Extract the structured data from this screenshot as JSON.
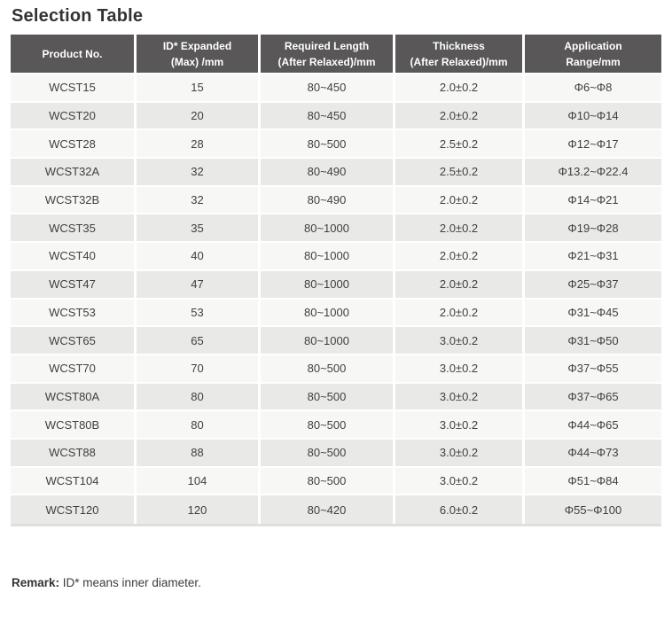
{
  "page": {
    "title": "Selection Table",
    "remark_label": "Remark:",
    "remark_text": " ID* means inner diameter."
  },
  "colors": {
    "header_bg": "#595757",
    "header_text": "#ffffff",
    "row_odd_bg": "#f7f7f6",
    "row_even_bg": "#e9e9e8",
    "cell_text": "#404040",
    "title_text": "#333333",
    "table_bottom_border": "#dfdfde"
  },
  "table": {
    "headers": [
      "Product No.",
      "ID* Expanded\n(Max) /mm",
      "Required Length\n(After Relaxed)/mm",
      "Thickness\n(After Relaxed)/mm",
      "Application\nRange/mm"
    ],
    "rows": [
      [
        "WCST15",
        "15",
        "80~450",
        "2.0±0.2",
        "Φ6~Φ8"
      ],
      [
        "WCST20",
        "20",
        "80~450",
        "2.0±0.2",
        "Φ10~Φ14"
      ],
      [
        "WCST28",
        "28",
        "80~500",
        "2.5±0.2",
        "Φ12~Φ17"
      ],
      [
        "WCST32A",
        "32",
        "80~490",
        "2.5±0.2",
        "Φ13.2~Φ22.4"
      ],
      [
        "WCST32B",
        "32",
        "80~490",
        "2.0±0.2",
        "Φ14~Φ21"
      ],
      [
        "WCST35",
        "35",
        "80~1000",
        "2.0±0.2",
        "Φ19~Φ28"
      ],
      [
        "WCST40",
        "40",
        "80~1000",
        "2.0±0.2",
        "Φ21~Φ31"
      ],
      [
        "WCST47",
        "47",
        "80~1000",
        "2.0±0.2",
        "Φ25~Φ37"
      ],
      [
        "WCST53",
        "53",
        "80~1000",
        "2.0±0.2",
        "Φ31~Φ45"
      ],
      [
        "WCST65",
        "65",
        "80~1000",
        "3.0±0.2",
        "Φ31~Φ50"
      ],
      [
        "WCST70",
        "70",
        "80~500",
        "3.0±0.2",
        "Φ37~Φ55"
      ],
      [
        "WCST80A",
        "80",
        "80~500",
        "3.0±0.2",
        "Φ37~Φ65"
      ],
      [
        "WCST80B",
        "80",
        "80~500",
        "3.0±0.2",
        "Φ44~Φ65"
      ],
      [
        "WCST88",
        "88",
        "80~500",
        "3.0±0.2",
        "Φ44~Φ73"
      ],
      [
        "WCST104",
        "104",
        "80~500",
        "3.0±0.2",
        "Φ51~Φ84"
      ],
      [
        "WCST120",
        "120",
        "80~420",
        "6.0±0.2",
        "Φ55~Φ100"
      ]
    ]
  }
}
